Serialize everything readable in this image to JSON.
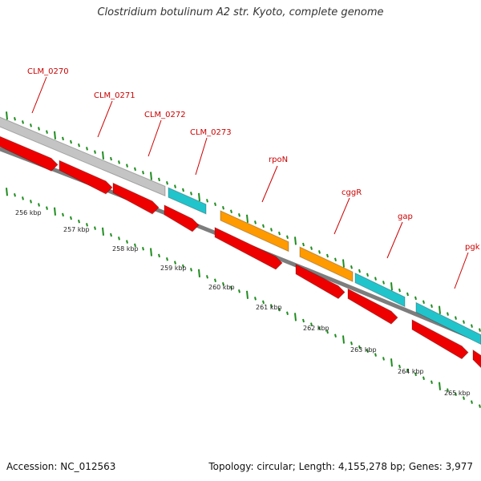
{
  "title": "Clostridium botulinum A2 str. Kyoto, complete genome",
  "footer": {
    "accession": "Accession: NC_012563",
    "summary": "Topology: circular; Length: 4,155,278 bp; Genes: 3,977"
  },
  "colors": {
    "gene_label": "#cc0000",
    "gene_red": "#ee0000",
    "gray_feature": "#c4c4c4",
    "cyan_feature": "#22c4cc",
    "orange_feature": "#ff9a00",
    "tick": "#1e8c1e",
    "backbone": "#8a8a8a"
  },
  "scale_labels": [
    "256 kbp",
    "257 kbp",
    "258 kbp",
    "259 kbp",
    "260 kbp",
    "261 kbp",
    "262 kbp",
    "263 kbp",
    "264 kbp",
    "265 kbp"
  ],
  "gene_labels": [
    "CLM_0270",
    "CLM_0271",
    "CLM_0272",
    "CLM_0273",
    "rpoN",
    "cggR",
    "gap",
    "pgk"
  ]
}
